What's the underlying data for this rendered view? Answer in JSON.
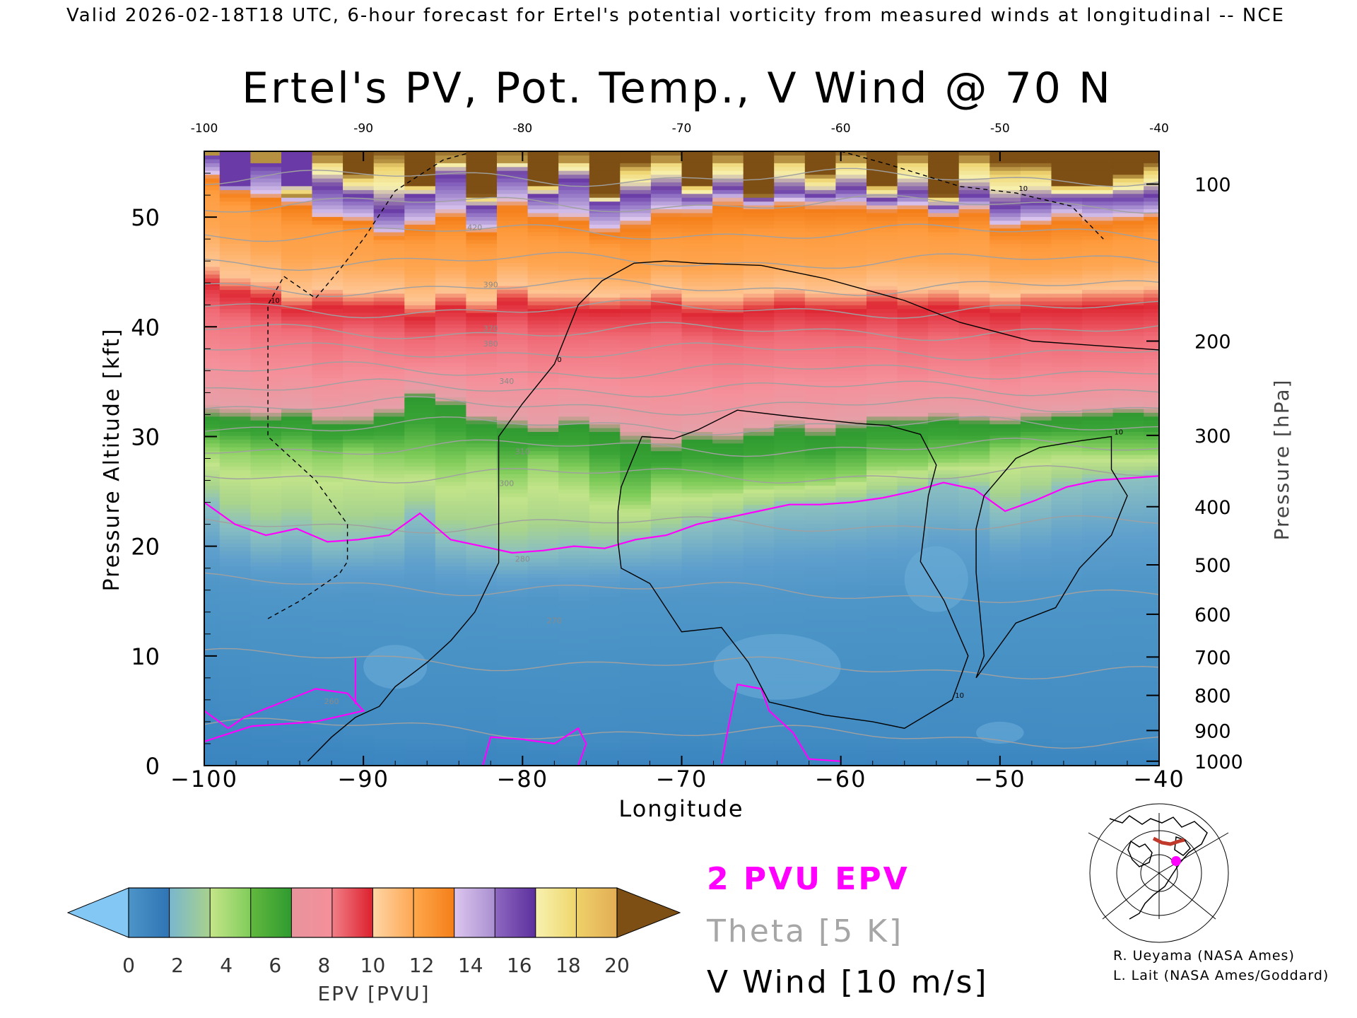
{
  "header": {
    "banner": "Valid 2026-02-18T18 UTC, 6-hour forecast for Ertel's potential vorticity from measured winds at longitudinal -- NCE"
  },
  "chart_data": {
    "type": "heatmap",
    "title": "Ertel's PV, Pot. Temp., V Wind @ 70 N",
    "xlabel": "Longitude",
    "ylabel_left": "Pressure Altitude [kft]",
    "ylabel_right": "Pressure [hPa]",
    "xlim": [
      -100,
      -40
    ],
    "ylim_kft": [
      0,
      56
    ],
    "x_ticks": [
      -100,
      -90,
      -80,
      -70,
      -60,
      -50,
      -40
    ],
    "x_tick_labels": [
      "−100",
      "−90",
      "−80",
      "−70",
      "−60",
      "−50",
      "−40"
    ],
    "x_top_tick_labels": [
      "-100",
      "-90",
      "-80",
      "-70",
      "-60",
      "-50",
      "-40"
    ],
    "y_left_ticks": [
      0,
      10,
      20,
      30,
      40,
      50
    ],
    "y_right_ticks": [
      {
        "label": "100",
        "kft": 53.0
      },
      {
        "label": "200",
        "kft": 38.7
      },
      {
        "label": "300",
        "kft": 30.1
      },
      {
        "label": "400",
        "kft": 23.6
      },
      {
        "label": "500",
        "kft": 18.3
      },
      {
        "label": "600",
        "kft": 13.8
      },
      {
        "label": "700",
        "kft": 9.9
      },
      {
        "label": "800",
        "kft": 6.4
      },
      {
        "label": "900",
        "kft": 3.2
      },
      {
        "label": "1000",
        "kft": 0.4
      }
    ],
    "pv_layers": [
      {
        "pvu": 20.0,
        "kft": [
          56,
          53,
          56,
          52,
          56,
          54,
          56,
          53,
          56,
          52,
          56,
          53,
          56,
          52,
          55,
          56,
          53,
          56,
          52,
          56,
          54,
          56,
          53,
          56,
          52,
          56,
          55,
          55,
          53,
          53,
          54,
          55
        ]
      },
      {
        "pvu": 17.0,
        "kft": [
          55.6,
          53,
          54.8,
          53,
          52.8,
          52,
          50.6,
          52,
          53.8,
          51,
          54,
          52,
          53.4,
          51.4,
          52,
          52.6,
          51.8,
          52.6,
          51.6,
          52.4,
          52,
          52.6,
          51.6,
          52.2,
          51,
          52,
          51,
          51.4,
          51.8,
          51.8,
          51.8,
          52
        ]
      },
      {
        "pvu": 14.0,
        "kft": [
          54,
          52.6,
          52.2,
          51.6,
          50.2,
          50,
          48.6,
          49.6,
          50.6,
          49,
          51.6,
          50.4,
          50.2,
          49,
          49.8,
          50.8,
          50.8,
          51.8,
          51.2,
          51.6,
          51.4,
          51.4,
          51,
          51.2,
          50.4,
          51,
          49.4,
          49.8,
          50.4,
          50,
          50.2,
          50.4
        ]
      },
      {
        "pvu": 12.0,
        "kft": [
          52,
          50.8,
          49.6,
          48.6,
          48.8,
          48.2,
          47.6,
          47.2,
          47.6,
          46.8,
          48,
          47.6,
          47.4,
          47,
          46.2,
          47.4,
          47.2,
          47.4,
          48,
          48,
          47.8,
          48,
          48.2,
          48.4,
          48,
          48.2,
          47,
          46.6,
          46.8,
          47.2,
          47.6,
          48
        ]
      },
      {
        "pvu": 10.0,
        "kft": [
          45,
          44,
          43.6,
          42.4,
          43,
          42.6,
          42.8,
          41.8,
          42.8,
          42,
          43.4,
          42.6,
          42.6,
          42.4,
          42.6,
          43,
          42.2,
          42.2,
          42.6,
          43,
          42.6,
          42.6,
          43.2,
          42.8,
          43,
          42.6,
          42.4,
          42.8,
          42.8,
          43,
          43,
          43.2
        ]
      },
      {
        "pvu": 8.0,
        "kft": [
          40,
          39.6,
          38.6,
          38.6,
          37.6,
          38.4,
          37.8,
          37.4,
          37.8,
          37.6,
          38.2,
          37.4,
          37.6,
          37.8,
          37.6,
          37.8,
          37.4,
          36.8,
          37.2,
          37.6,
          37.6,
          37.4,
          37.6,
          37,
          37.4,
          37.4,
          36.8,
          37.2,
          37,
          37.2,
          37.2,
          37.4
        ]
      },
      {
        "pvu": 6.0,
        "kft": [
          32,
          31.8,
          31.6,
          32,
          31.2,
          31.2,
          32,
          33.8,
          33,
          31.4,
          31,
          30.4,
          31.2,
          30.6,
          29.6,
          28.8,
          29.8,
          29.6,
          30.2,
          30.8,
          30.2,
          30.8,
          31.4,
          31.4,
          31.6,
          31.4,
          31.2,
          31.6,
          31.8,
          32,
          32.2,
          32
        ]
      },
      {
        "pvu": 4.0,
        "kft": [
          29,
          28.6,
          28.2,
          28.4,
          28,
          28.6,
          28,
          27.6,
          27.2,
          28,
          26.4,
          27.8,
          26.8,
          25.4,
          24.2,
          25.8,
          25.4,
          25.4,
          25.8,
          25.8,
          26,
          26.4,
          27.4,
          27.4,
          27.8,
          28,
          28.8,
          29,
          29,
          28.8,
          28.6,
          28.6
        ]
      },
      {
        "pvu": 2.0,
        "kft": [
          24,
          22,
          21,
          21.6,
          20.4,
          20.6,
          21,
          23,
          20.6,
          20,
          19.4,
          19.6,
          20,
          19.8,
          20.6,
          21,
          22,
          22.6,
          23.2,
          23.8,
          23.8,
          24,
          24.4,
          25,
          25.8,
          25.2,
          23.2,
          24.2,
          25.4,
          26,
          26.2,
          26.4
        ]
      },
      {
        "pvu": 1.0,
        "kft": [
          17,
          16.6,
          16.2,
          16,
          15.6,
          15.8,
          15.6,
          15.4,
          15.4,
          15.4,
          15.2,
          15.4,
          15,
          15.4,
          15.8,
          15.6,
          15.6,
          15.4,
          15.6,
          15.8,
          16,
          16.2,
          16.4,
          16.4,
          16.6,
          16.8,
          16.8,
          16.8,
          17,
          17.2,
          17.4,
          17.4
        ]
      },
      {
        "pvu": 0.4,
        "kft": [
          6,
          4.8,
          4.2,
          4,
          3.8,
          3,
          2.6,
          2.8,
          2.8,
          3,
          2.4,
          2.2,
          2,
          2.2,
          2.8,
          3.2,
          3,
          2.6,
          2.8,
          2.8,
          2.6,
          2.6,
          2.8,
          2.4,
          2.6,
          2.4,
          2.4,
          2.6,
          2.2,
          2.2,
          2.4,
          2.2
        ]
      },
      {
        "pvu": 0.0,
        "kft": [
          0,
          0,
          0,
          0,
          0,
          0,
          0,
          0,
          0,
          0,
          0,
          0,
          0,
          0,
          0,
          0,
          0,
          0,
          0,
          0,
          0,
          0,
          0,
          0,
          0,
          0,
          0,
          0,
          0,
          0,
          0,
          0
        ]
      }
    ],
    "theta_levels_K": [
      260,
      270,
      280,
      290,
      300,
      310,
      320,
      330,
      340,
      350,
      360,
      370,
      380,
      390,
      400,
      410,
      420,
      430
    ],
    "theta_labels_shown": [
      "260",
      "270",
      "280",
      "300",
      "310",
      "340",
      "370",
      "380",
      "390",
      "420"
    ],
    "v_wind_contours": [
      {
        "label": "10",
        "dashed": true,
        "points": [
          [
            -96,
            13.4
          ],
          [
            -94,
            15
          ],
          [
            -91.5,
            17.5
          ],
          [
            -91,
            18.6
          ],
          [
            -91,
            22
          ],
          [
            -93,
            26
          ],
          [
            -96,
            30
          ],
          [
            -96,
            36
          ],
          [
            -96,
            42
          ],
          [
            -95,
            44.6
          ],
          [
            -93,
            42.6
          ],
          [
            -91.5,
            45.2
          ],
          [
            -90,
            48
          ],
          [
            -88,
            52.4
          ],
          [
            -85,
            55.2
          ],
          [
            -83.5,
            55.8
          ]
        ]
      },
      {
        "label": "10",
        "dashed": true,
        "points": [
          [
            -60,
            56
          ],
          [
            -57,
            54.8
          ],
          [
            -52.5,
            52.8
          ],
          [
            -49,
            52.2
          ],
          [
            -45.5,
            51
          ],
          [
            -43.5,
            48
          ]
        ]
      },
      {
        "label": "0",
        "dashed": false,
        "points": [
          [
            -93.5,
            0.4
          ],
          [
            -92,
            2.6
          ],
          [
            -90.5,
            4.4
          ],
          [
            -89,
            5.4
          ],
          [
            -88,
            7.2
          ],
          [
            -86,
            9.4
          ],
          [
            -84.5,
            11.4
          ],
          [
            -83,
            14
          ],
          [
            -81.5,
            18.5
          ],
          [
            -81.5,
            30
          ],
          [
            -80,
            33
          ],
          [
            -78,
            36.6
          ],
          [
            -76.5,
            42
          ],
          [
            -75,
            44.2
          ],
          [
            -73,
            45.8
          ],
          [
            -71,
            46
          ],
          [
            -69,
            45.8
          ],
          [
            -65,
            45.6
          ],
          [
            -61,
            44.4
          ],
          [
            -56,
            42.4
          ],
          [
            -52.5,
            40.4
          ],
          [
            -48,
            38.7
          ],
          [
            -40,
            37.9
          ]
        ]
      },
      {
        "label": "10",
        "dashed": false,
        "points": [
          [
            -72.5,
            30
          ],
          [
            -70.5,
            29.8
          ],
          [
            -69,
            30.6
          ],
          [
            -66.5,
            32.4
          ],
          [
            -63,
            31.8
          ],
          [
            -59,
            31.2
          ],
          [
            -57,
            31
          ],
          [
            -55,
            30.2
          ],
          [
            -54,
            27.4
          ],
          [
            -54.5,
            24.6
          ],
          [
            -55,
            18.6
          ],
          [
            -53.5,
            15
          ],
          [
            -52,
            10
          ],
          [
            -53,
            6
          ],
          [
            -56,
            3.4
          ],
          [
            -58,
            4
          ],
          [
            -61,
            4.6
          ],
          [
            -64.5,
            5.8
          ],
          [
            -65.8,
            9.4
          ],
          [
            -67.5,
            12.6
          ],
          [
            -70,
            12.2
          ],
          [
            -72,
            16.6
          ],
          [
            -73.8,
            18
          ],
          [
            -74,
            20.4
          ],
          [
            -74,
            23.2
          ],
          [
            -73.8,
            25.4
          ],
          [
            -72.5,
            30
          ]
        ]
      },
      {
        "label": "10",
        "dashed": false,
        "points": [
          [
            -51.5,
            8
          ],
          [
            -51,
            10
          ],
          [
            -51.5,
            17.6
          ],
          [
            -51.5,
            21.6
          ],
          [
            -51,
            24.6
          ],
          [
            -49,
            28
          ],
          [
            -47.5,
            29
          ],
          [
            -45,
            29.6
          ],
          [
            -43,
            30
          ],
          [
            -43,
            27
          ],
          [
            -42,
            24.6
          ],
          [
            -43,
            21
          ],
          [
            -45,
            18
          ],
          [
            -46.5,
            14.4
          ],
          [
            -49,
            13
          ],
          [
            -51.5,
            8
          ]
        ]
      }
    ],
    "colorbar": {
      "label": "EPV [PVU]",
      "ticks": [
        "0",
        "2",
        "4",
        "6",
        "8",
        "10",
        "12",
        "14",
        "16",
        "18",
        "20"
      ],
      "colors": {
        "under": "#83c8f5",
        "over": "#7d4f14",
        "segments": [
          [
            "#4c94c8",
            "#2f74b4"
          ],
          [
            "#79b6cd",
            "#a9d28c"
          ],
          [
            "#c5e589",
            "#7fcc5a"
          ],
          [
            "#62b93e",
            "#2f9a30"
          ],
          [
            "#e7949d",
            "#f58f99"
          ],
          [
            "#f17f87",
            "#dc1f2c"
          ],
          [
            "#fed6a6",
            "#fea652"
          ],
          [
            "#fea84c",
            "#f47e18"
          ],
          [
            "#dcc6ee",
            "#a98fd0"
          ],
          [
            "#8e68c1",
            "#5c2f9c"
          ],
          [
            "#f7f1b0",
            "#efd66a"
          ],
          [
            "#efd169",
            "#e2ad55"
          ]
        ]
      }
    },
    "legend": [
      {
        "text": "2 PVU EPV",
        "color": "#ff00ff"
      },
      {
        "text": "Theta [5 K]",
        "color": "#a6a6a6"
      },
      {
        "text": "V Wind [10 m/s]",
        "color": "#000000"
      }
    ]
  },
  "credits": [
    "R. Ueyama (NASA Ames)",
    "L. Lait (NASA Ames/Goddard)"
  ]
}
